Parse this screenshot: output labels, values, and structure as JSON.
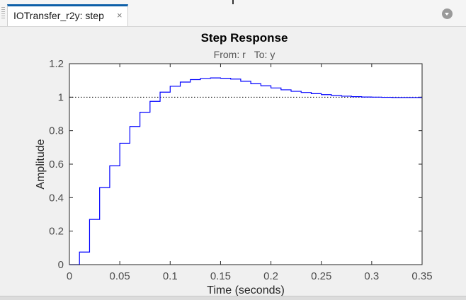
{
  "tab": {
    "title": "IOTransfer_r2y: step",
    "close_glyph": "×"
  },
  "chart_data": {
    "type": "line",
    "title": "Step Response",
    "subtitle_from_label": "From: r",
    "subtitle_to_label": "To: y",
    "xlabel": "Time (seconds)",
    "ylabel": "Amplitude",
    "xlim": [
      0,
      0.35
    ],
    "ylim": [
      0,
      1.2
    ],
    "xticks": [
      0,
      0.05,
      0.1,
      0.15,
      0.2,
      0.25,
      0.3,
      0.35
    ],
    "xtick_labels": [
      "0",
      "0.05",
      "0.1",
      "0.15",
      "0.2",
      "0.25",
      "0.3",
      "0.35"
    ],
    "yticks": [
      0,
      0.2,
      0.4,
      0.6,
      0.8,
      1,
      1.2
    ],
    "ytick_labels": [
      "0",
      "0.2",
      "0.4",
      "0.6",
      "0.8",
      "1",
      "1.2"
    ],
    "grid": false,
    "steady_state": 1,
    "sample_time": 0.01,
    "series": [
      {
        "style": "stairs",
        "color": "#0000ff",
        "x": [
          0,
          0.01,
          0.02,
          0.03,
          0.04,
          0.05,
          0.06,
          0.07,
          0.08,
          0.09,
          0.1,
          0.11,
          0.12,
          0.13,
          0.14,
          0.15,
          0.16,
          0.17,
          0.18,
          0.19,
          0.2,
          0.21,
          0.22,
          0.23,
          0.24,
          0.25,
          0.26,
          0.27,
          0.28,
          0.29,
          0.3,
          0.31,
          0.32,
          0.33,
          0.34,
          0.35
        ],
        "y": [
          0,
          0.075,
          0.27,
          0.46,
          0.59,
          0.725,
          0.825,
          0.91,
          0.975,
          1.03,
          1.065,
          1.09,
          1.105,
          1.112,
          1.115,
          1.113,
          1.108,
          1.095,
          1.08,
          1.068,
          1.055,
          1.044,
          1.035,
          1.028,
          1.021,
          1.015,
          1.01,
          1.006,
          1.003,
          1.001,
          1.0,
          0.999,
          0.998,
          0.998,
          0.998,
          0.998
        ]
      }
    ],
    "reference_line": {
      "style": "dotted",
      "color": "#000000",
      "y": 1
    }
  }
}
